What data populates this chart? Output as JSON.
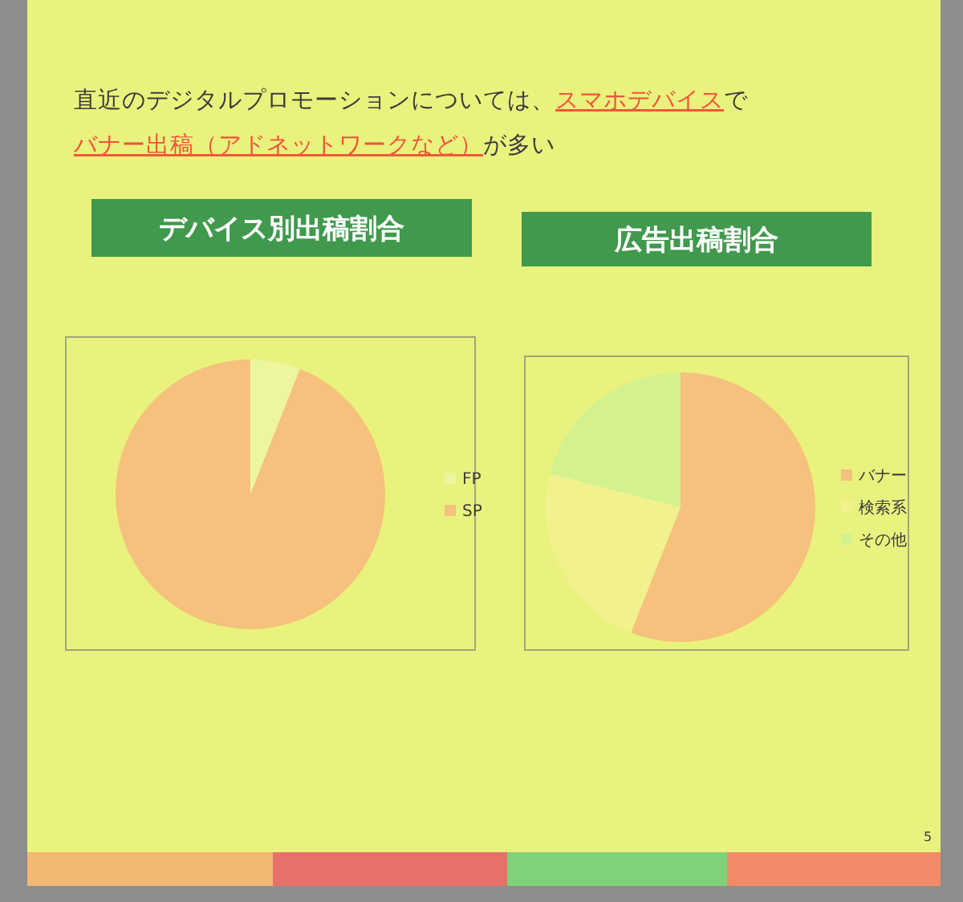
{
  "chart_data": [
    {
      "type": "other",
      "annotations": [
        "直近のデジタルプロモーションについては、",
        "スマホデバイス",
        "で",
        "バナー出稿（アドネットワークなど）",
        "が多い",
        "5"
      ]
    },
    {
      "type": "pie",
      "title": "デバイス別出稿割合",
      "categories": [
        "FP",
        "SP"
      ],
      "values": [
        6,
        94
      ],
      "colors": [
        "#edf59e",
        "#f5c17c"
      ],
      "legend": "right"
    },
    {
      "type": "pie",
      "title": "広告出稿割合",
      "categories": [
        "バナー",
        "検索系",
        "その他"
      ],
      "values": [
        56,
        23,
        21
      ],
      "colors": [
        "#f5c17c",
        "#f1f28e",
        "#d3f28f"
      ],
      "legend": "right"
    }
  ]
}
